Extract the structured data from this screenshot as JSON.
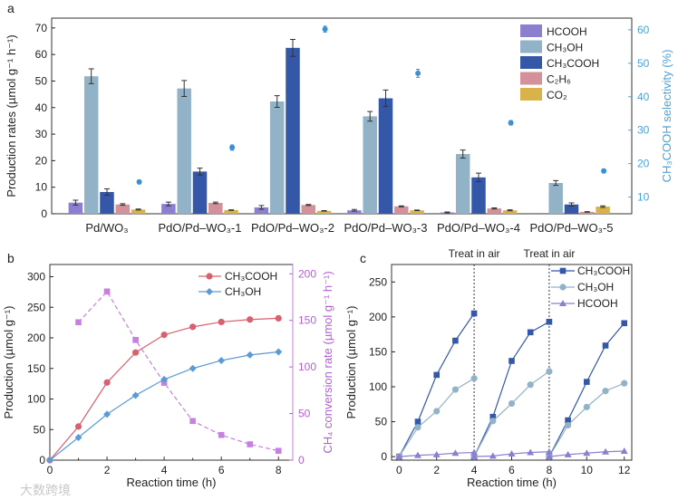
{
  "chart_data": [
    {
      "panel": "a",
      "type": "bar",
      "title": "",
      "xlabel": "",
      "ylabel": "Production rates (µmol g⁻¹ h⁻¹)",
      "y2label": "CH₃COOH selectivity (%)",
      "ylim": [
        0,
        73.7
      ],
      "y2lim": [
        5,
        63.5
      ],
      "yticks": [
        0,
        10,
        20,
        30,
        40,
        50,
        60,
        70
      ],
      "y2ticks": [
        10,
        20,
        30,
        40,
        50,
        60
      ],
      "legend_position": "top-right",
      "categories": [
        "Pd/WO₃",
        "PdO/Pd–WO₃-1",
        "PdO/Pd–WO₃-2",
        "PdO/Pd–WO₃-3",
        "PdO/Pd–WO₃-4",
        "PdO/Pd–WO₃-5"
      ],
      "series": [
        {
          "name": "HCOOH",
          "color": "#8b7fcf",
          "values": [
            4.2,
            3.7,
            2.4,
            1.3,
            0.5,
            0
          ],
          "errors": [
            0.9,
            0.7,
            0.7,
            0.3,
            0.2,
            0
          ]
        },
        {
          "name": "CH₃OH",
          "color": "#92b2c8",
          "values": [
            51.8,
            47.2,
            42.3,
            36.7,
            22.5,
            11.6
          ],
          "errors": [
            2.8,
            3.0,
            2.2,
            1.8,
            1.5,
            0.9
          ]
        },
        {
          "name": "CH₃COOH",
          "color": "#3457a8",
          "values": [
            8.2,
            15.9,
            62.5,
            43.5,
            13.7,
            3.5
          ],
          "errors": [
            1.2,
            1.3,
            3.2,
            3.1,
            1.6,
            0.6
          ]
        },
        {
          "name": "C₂H₆",
          "color": "#d4919a",
          "values": [
            3.5,
            4.1,
            3.3,
            2.8,
            2.0,
            0.7
          ],
          "errors": [
            0.3,
            0.3,
            0.2,
            0.2,
            0.2,
            0.1
          ]
        },
        {
          "name": "CO₂",
          "color": "#d9b24a",
          "values": [
            1.6,
            1.4,
            1.1,
            1.3,
            1.3,
            2.7
          ],
          "errors": [
            0.2,
            0.1,
            0.1,
            0.1,
            0.2,
            0.3
          ]
        }
      ],
      "selectivity": {
        "name": "CH₃COOH selectivity",
        "color": "#3a8fd6",
        "values": [
          14.5,
          24.8,
          60.2,
          47.0,
          32.2,
          17.8
        ],
        "errors": [
          0.6,
          0.8,
          0.9,
          1.2,
          0.7,
          0.6
        ]
      }
    },
    {
      "panel": "b",
      "type": "line",
      "xlabel": "Reaction time (h)",
      "ylabel": "Production (µmol g⁻¹)",
      "y2label": "CH₄ conversion rate (µmol g⁻¹ h⁻¹)",
      "xlim": [
        0,
        8.5
      ],
      "ylim": [
        0,
        320
      ],
      "y2lim": [
        0,
        210
      ],
      "xticks": [
        0,
        2,
        4,
        6,
        8
      ],
      "yticks": [
        0,
        50,
        100,
        150,
        200,
        250,
        300
      ],
      "y2ticks": [
        0,
        50,
        100,
        150,
        200
      ],
      "legend_position": "top-right",
      "series": [
        {
          "name": "CH₃COOH",
          "color": "#d9606e",
          "marker": "circle",
          "x": [
            0,
            1,
            2,
            3,
            4,
            5,
            6,
            7,
            8
          ],
          "y": [
            0,
            55,
            127,
            176,
            205,
            218,
            226,
            230,
            232
          ]
        },
        {
          "name": "CH₃OH",
          "color": "#5b9bd5",
          "marker": "diamond",
          "x": [
            0,
            1,
            2,
            3,
            4,
            5,
            6,
            7,
            8
          ],
          "y": [
            0,
            37,
            75,
            106,
            132,
            150,
            163,
            172,
            177
          ]
        }
      ],
      "secondary_series": {
        "name": "CH₄ conversion rate",
        "color": "#c77fe0",
        "dashed": true,
        "x": [
          1,
          2,
          3,
          4,
          5,
          6,
          7,
          8
        ],
        "y": [
          148,
          181,
          129,
          83,
          42,
          27,
          17,
          10
        ]
      }
    },
    {
      "panel": "c",
      "type": "line",
      "xlabel": "Reaction time (h)",
      "ylabel": "Production (µmol g⁻¹)",
      "xlim": [
        -0.4,
        12.4
      ],
      "ylim": [
        -5,
        275
      ],
      "xticks": [
        0,
        2,
        4,
        6,
        8,
        10,
        12
      ],
      "yticks": [
        0,
        50,
        100,
        150,
        200,
        250
      ],
      "legend_position": "top-right",
      "annotations": [
        {
          "x": 4,
          "text": "Treat in air"
        },
        {
          "x": 8,
          "text": "Treat in air"
        }
      ],
      "series": [
        {
          "name": "CH₃COOH",
          "color": "#3457a8",
          "marker": "square",
          "segments": [
            {
              "x": [
                0,
                1,
                2,
                3,
                4
              ],
              "y": [
                0,
                50,
                117,
                166,
                205
              ]
            },
            {
              "x": [
                4,
                5,
                6,
                7,
                8
              ],
              "y": [
                0,
                57,
                137,
                178,
                193
              ]
            },
            {
              "x": [
                8,
                9,
                10,
                11,
                12
              ],
              "y": [
                0,
                52,
                107,
                159,
                191
              ]
            }
          ]
        },
        {
          "name": "CH₃OH",
          "color": "#92b2c8",
          "marker": "circle",
          "segments": [
            {
              "x": [
                0,
                1,
                2,
                3,
                4
              ],
              "y": [
                0,
                42,
                65,
                96,
                112
              ]
            },
            {
              "x": [
                4,
                5,
                6,
                7,
                8
              ],
              "y": [
                0,
                51,
                76,
                103,
                122
              ]
            },
            {
              "x": [
                8,
                9,
                10,
                11,
                12
              ],
              "y": [
                0,
                45,
                71,
                94,
                105
              ]
            }
          ]
        },
        {
          "name": "HCOOH",
          "color": "#8b7fcf",
          "marker": "triangle",
          "segments": [
            {
              "x": [
                0,
                1,
                2,
                3,
                4
              ],
              "y": [
                0,
                2,
                3,
                5,
                6
              ]
            },
            {
              "x": [
                4,
                5,
                6,
                7,
                8
              ],
              "y": [
                0,
                1,
                4,
                6,
                7
              ]
            },
            {
              "x": [
                8,
                9,
                10,
                11,
                12
              ],
              "y": [
                0,
                3,
                5,
                7,
                8
              ]
            }
          ]
        }
      ]
    }
  ],
  "panel_labels": {
    "a": "a",
    "b": "b",
    "c": "c"
  },
  "watermark": "大数跨境"
}
